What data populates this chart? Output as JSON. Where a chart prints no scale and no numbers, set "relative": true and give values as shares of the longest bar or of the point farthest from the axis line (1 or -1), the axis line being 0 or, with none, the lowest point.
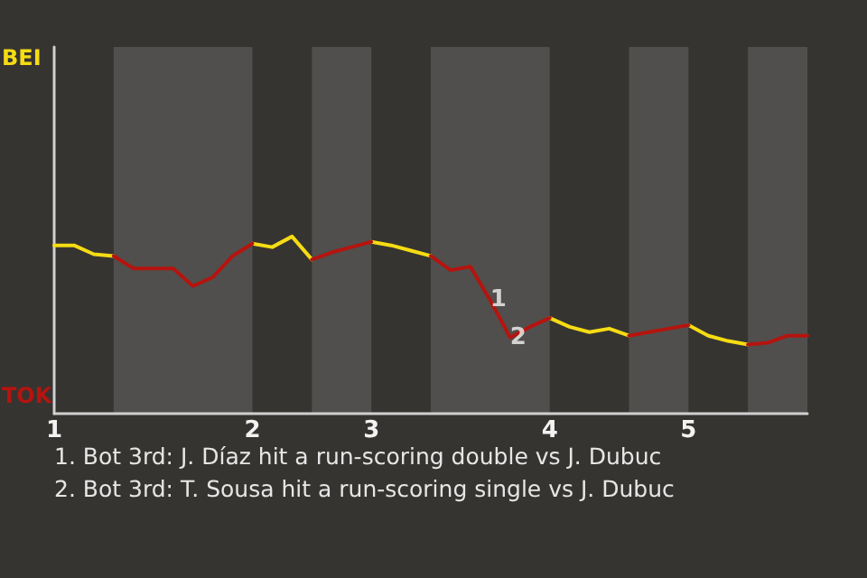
{
  "chart_data": {
    "type": "line",
    "relative": true,
    "categories": [
      "1",
      null,
      null,
      null,
      null,
      null,
      null,
      null,
      null,
      null,
      "2",
      null,
      null,
      null,
      null,
      null,
      "3",
      null,
      null,
      null,
      null,
      null,
      null,
      null,
      null,
      "4",
      null,
      null,
      null,
      null,
      null,
      null,
      "5",
      null,
      null,
      null,
      null,
      null,
      null
    ],
    "legend": "left",
    "marker": "none",
    "line_style": "solid",
    "series": [
      {
        "name": "BEI",
        "color": "#f5dc14",
        "values": [
          0.95,
          0.95,
          0.9,
          0.89,
          null,
          null,
          null,
          null,
          null,
          null,
          0.96,
          0.94,
          1,
          0.87,
          null,
          null,
          0.97,
          0.95,
          0.92,
          0.89,
          null,
          null,
          null,
          null,
          null,
          0.54,
          0.49,
          0.46,
          0.48,
          0.44,
          null,
          null,
          0.5,
          0.44,
          0.41,
          0.39,
          null,
          null,
          null
        ]
      },
      {
        "name": "TOK",
        "color": "#b5140f",
        "values": [
          null,
          null,
          null,
          0.89,
          0.82,
          0.82,
          0.82,
          0.72,
          0.77,
          0.89,
          0.96,
          null,
          null,
          0.87,
          0.91,
          0.94,
          0.97,
          null,
          null,
          0.89,
          0.81,
          0.83,
          0.64,
          0.43,
          0.49,
          0.54,
          null,
          null,
          null,
          0.44,
          0.46,
          0.48,
          0.5,
          null,
          null,
          0.39,
          0.4,
          0.44,
          0.44
        ]
      }
    ],
    "annotations": [
      {
        "text": "1",
        "y": 0.64
      },
      {
        "text": "2",
        "y": 0.43
      },
      "1. Bot 3rd: J. Díaz hit a run-scoring double vs J. Dubuc",
      "2. Bot 3rd: T. Sousa hit a run-scoring single vs J. Dubuc"
    ]
  }
}
